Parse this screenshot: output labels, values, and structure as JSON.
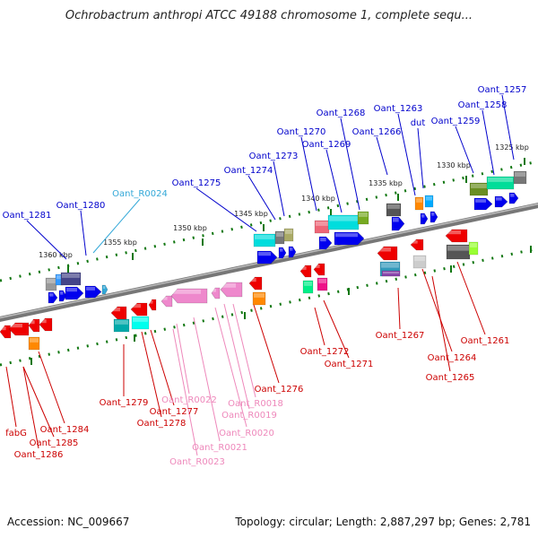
{
  "title": "Ochrobactrum anthropi ATCC 49188 chromosome 1, complete sequ...",
  "footer": {
    "accession": "Accession: NC_009667",
    "topology": "Topology: circular; Length: 2,887,297 bp; Genes: 2,781"
  },
  "colors": {
    "forward_label": "#0000cc",
    "reverse_label": "#cc0000",
    "trna_forward_label": "#33a8d8",
    "trna_reverse_label": "#ee88bb",
    "forward_arrow": "#0000ee",
    "reverse_arrow": "#ee0000",
    "pseudo_arrow": "#ee88cc",
    "backbone": "#777777",
    "tick": "#117711"
  },
  "kbp_marks": [
    "1325 kbp",
    "1330 kbp",
    "1335 kbp",
    "1340 kbp",
    "1345 kbp",
    "1350 kbp",
    "1355 kbp",
    "1360 kbp"
  ],
  "forward_genes": [
    "Oant_1257",
    "Oant_1258",
    "Oant_1259",
    "dut",
    "Oant_1263",
    "Oant_1266",
    "Oant_1268",
    "Oant_1269",
    "Oant_1270",
    "Oant_1273",
    "Oant_1274",
    "Oant_1275",
    "Oant_R0024",
    "Oant_1280",
    "Oant_1281"
  ],
  "reverse_genes": [
    "Oant_1261",
    "Oant_1264",
    "Oant_1265",
    "Oant_1267",
    "Oant_1271",
    "Oant_1272",
    "Oant_1276",
    "Oant_R0018",
    "Oant_R0019",
    "Oant_R0020",
    "Oant_R0021",
    "Oant_R0022",
    "Oant_R0023",
    "Oant_1277",
    "Oant_1278",
    "Oant_1279",
    "Oant_1284",
    "Oant_1285",
    "Oant_1286",
    "fabG"
  ]
}
